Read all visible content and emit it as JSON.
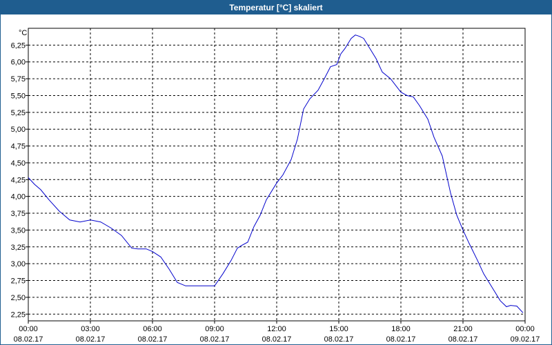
{
  "window": {
    "title": "Temperatur [°C] skaliert"
  },
  "chart_data": {
    "type": "line",
    "title": "Temperatur [°C] skaliert",
    "yunit": "°C",
    "ylim": [
      2.15,
      6.5
    ],
    "xlim": [
      0,
      24
    ],
    "grid": true,
    "line_color": "#0000cc",
    "y_ticks": [
      {
        "value": 2.25,
        "label": "2,25"
      },
      {
        "value": 2.5,
        "label": "2,50"
      },
      {
        "value": 2.75,
        "label": "2,75"
      },
      {
        "value": 3.0,
        "label": "3,00"
      },
      {
        "value": 3.25,
        "label": "3,25"
      },
      {
        "value": 3.5,
        "label": "3,50"
      },
      {
        "value": 3.75,
        "label": "3,75"
      },
      {
        "value": 4.0,
        "label": "4,00"
      },
      {
        "value": 4.25,
        "label": "4,25"
      },
      {
        "value": 4.5,
        "label": "4,50"
      },
      {
        "value": 4.75,
        "label": "4,75"
      },
      {
        "value": 5.0,
        "label": "5,00"
      },
      {
        "value": 5.25,
        "label": "5,25"
      },
      {
        "value": 5.5,
        "label": "5,50"
      },
      {
        "value": 5.75,
        "label": "5,75"
      },
      {
        "value": 6.0,
        "label": "6,00"
      },
      {
        "value": 6.25,
        "label": "6,25"
      }
    ],
    "x_ticks": [
      {
        "value": 0,
        "time": "00:00",
        "date": "08.02.17"
      },
      {
        "value": 3,
        "time": "03:00",
        "date": "08.02.17"
      },
      {
        "value": 6,
        "time": "06:00",
        "date": "08.02.17"
      },
      {
        "value": 9,
        "time": "09:00",
        "date": "08.02.17"
      },
      {
        "value": 12,
        "time": "12:00",
        "date": "08.02.17"
      },
      {
        "value": 15,
        "time": "15:00",
        "date": "08.02.17"
      },
      {
        "value": 18,
        "time": "18:00",
        "date": "08.02.17"
      },
      {
        "value": 21,
        "time": "21:00",
        "date": "08.02.17"
      },
      {
        "value": 24,
        "time": "00:00",
        "date": "09.02.17"
      }
    ],
    "x": [
      0,
      0.3,
      0.6,
      1.0,
      1.5,
      2.0,
      2.5,
      3.0,
      3.5,
      4.0,
      4.5,
      5.0,
      5.3,
      5.7,
      6.0,
      6.4,
      6.8,
      7.2,
      7.6,
      8.0,
      8.5,
      9.0,
      9.4,
      9.8,
      10.1,
      10.3,
      10.6,
      10.9,
      11.2,
      11.5,
      12.0,
      12.3,
      12.7,
      13.0,
      13.3,
      13.6,
      14.0,
      14.3,
      14.6,
      14.9,
      15.1,
      15.3,
      15.6,
      15.8,
      16.0,
      16.2,
      16.5,
      16.8,
      17.1,
      17.5,
      18.0,
      18.3,
      18.6,
      18.9,
      19.3,
      19.6,
      20.0,
      20.4,
      20.7,
      21.0,
      21.3,
      21.7,
      22.0,
      22.4,
      22.8,
      23.1,
      23.3,
      23.6,
      23.9
    ],
    "values": [
      4.28,
      4.18,
      4.1,
      3.95,
      3.78,
      3.65,
      3.62,
      3.65,
      3.62,
      3.53,
      3.42,
      3.23,
      3.22,
      3.22,
      3.18,
      3.1,
      2.92,
      2.72,
      2.67,
      2.67,
      2.67,
      2.67,
      2.85,
      3.05,
      3.23,
      3.27,
      3.32,
      3.55,
      3.72,
      3.95,
      4.2,
      4.32,
      4.55,
      4.85,
      5.3,
      5.45,
      5.58,
      5.75,
      5.93,
      5.96,
      6.12,
      6.2,
      6.35,
      6.4,
      6.38,
      6.35,
      6.2,
      6.05,
      5.85,
      5.75,
      5.55,
      5.5,
      5.48,
      5.35,
      5.15,
      4.88,
      4.6,
      4.05,
      3.72,
      3.5,
      3.3,
      3.05,
      2.85,
      2.65,
      2.45,
      2.36,
      2.38,
      2.37,
      2.27
    ]
  }
}
